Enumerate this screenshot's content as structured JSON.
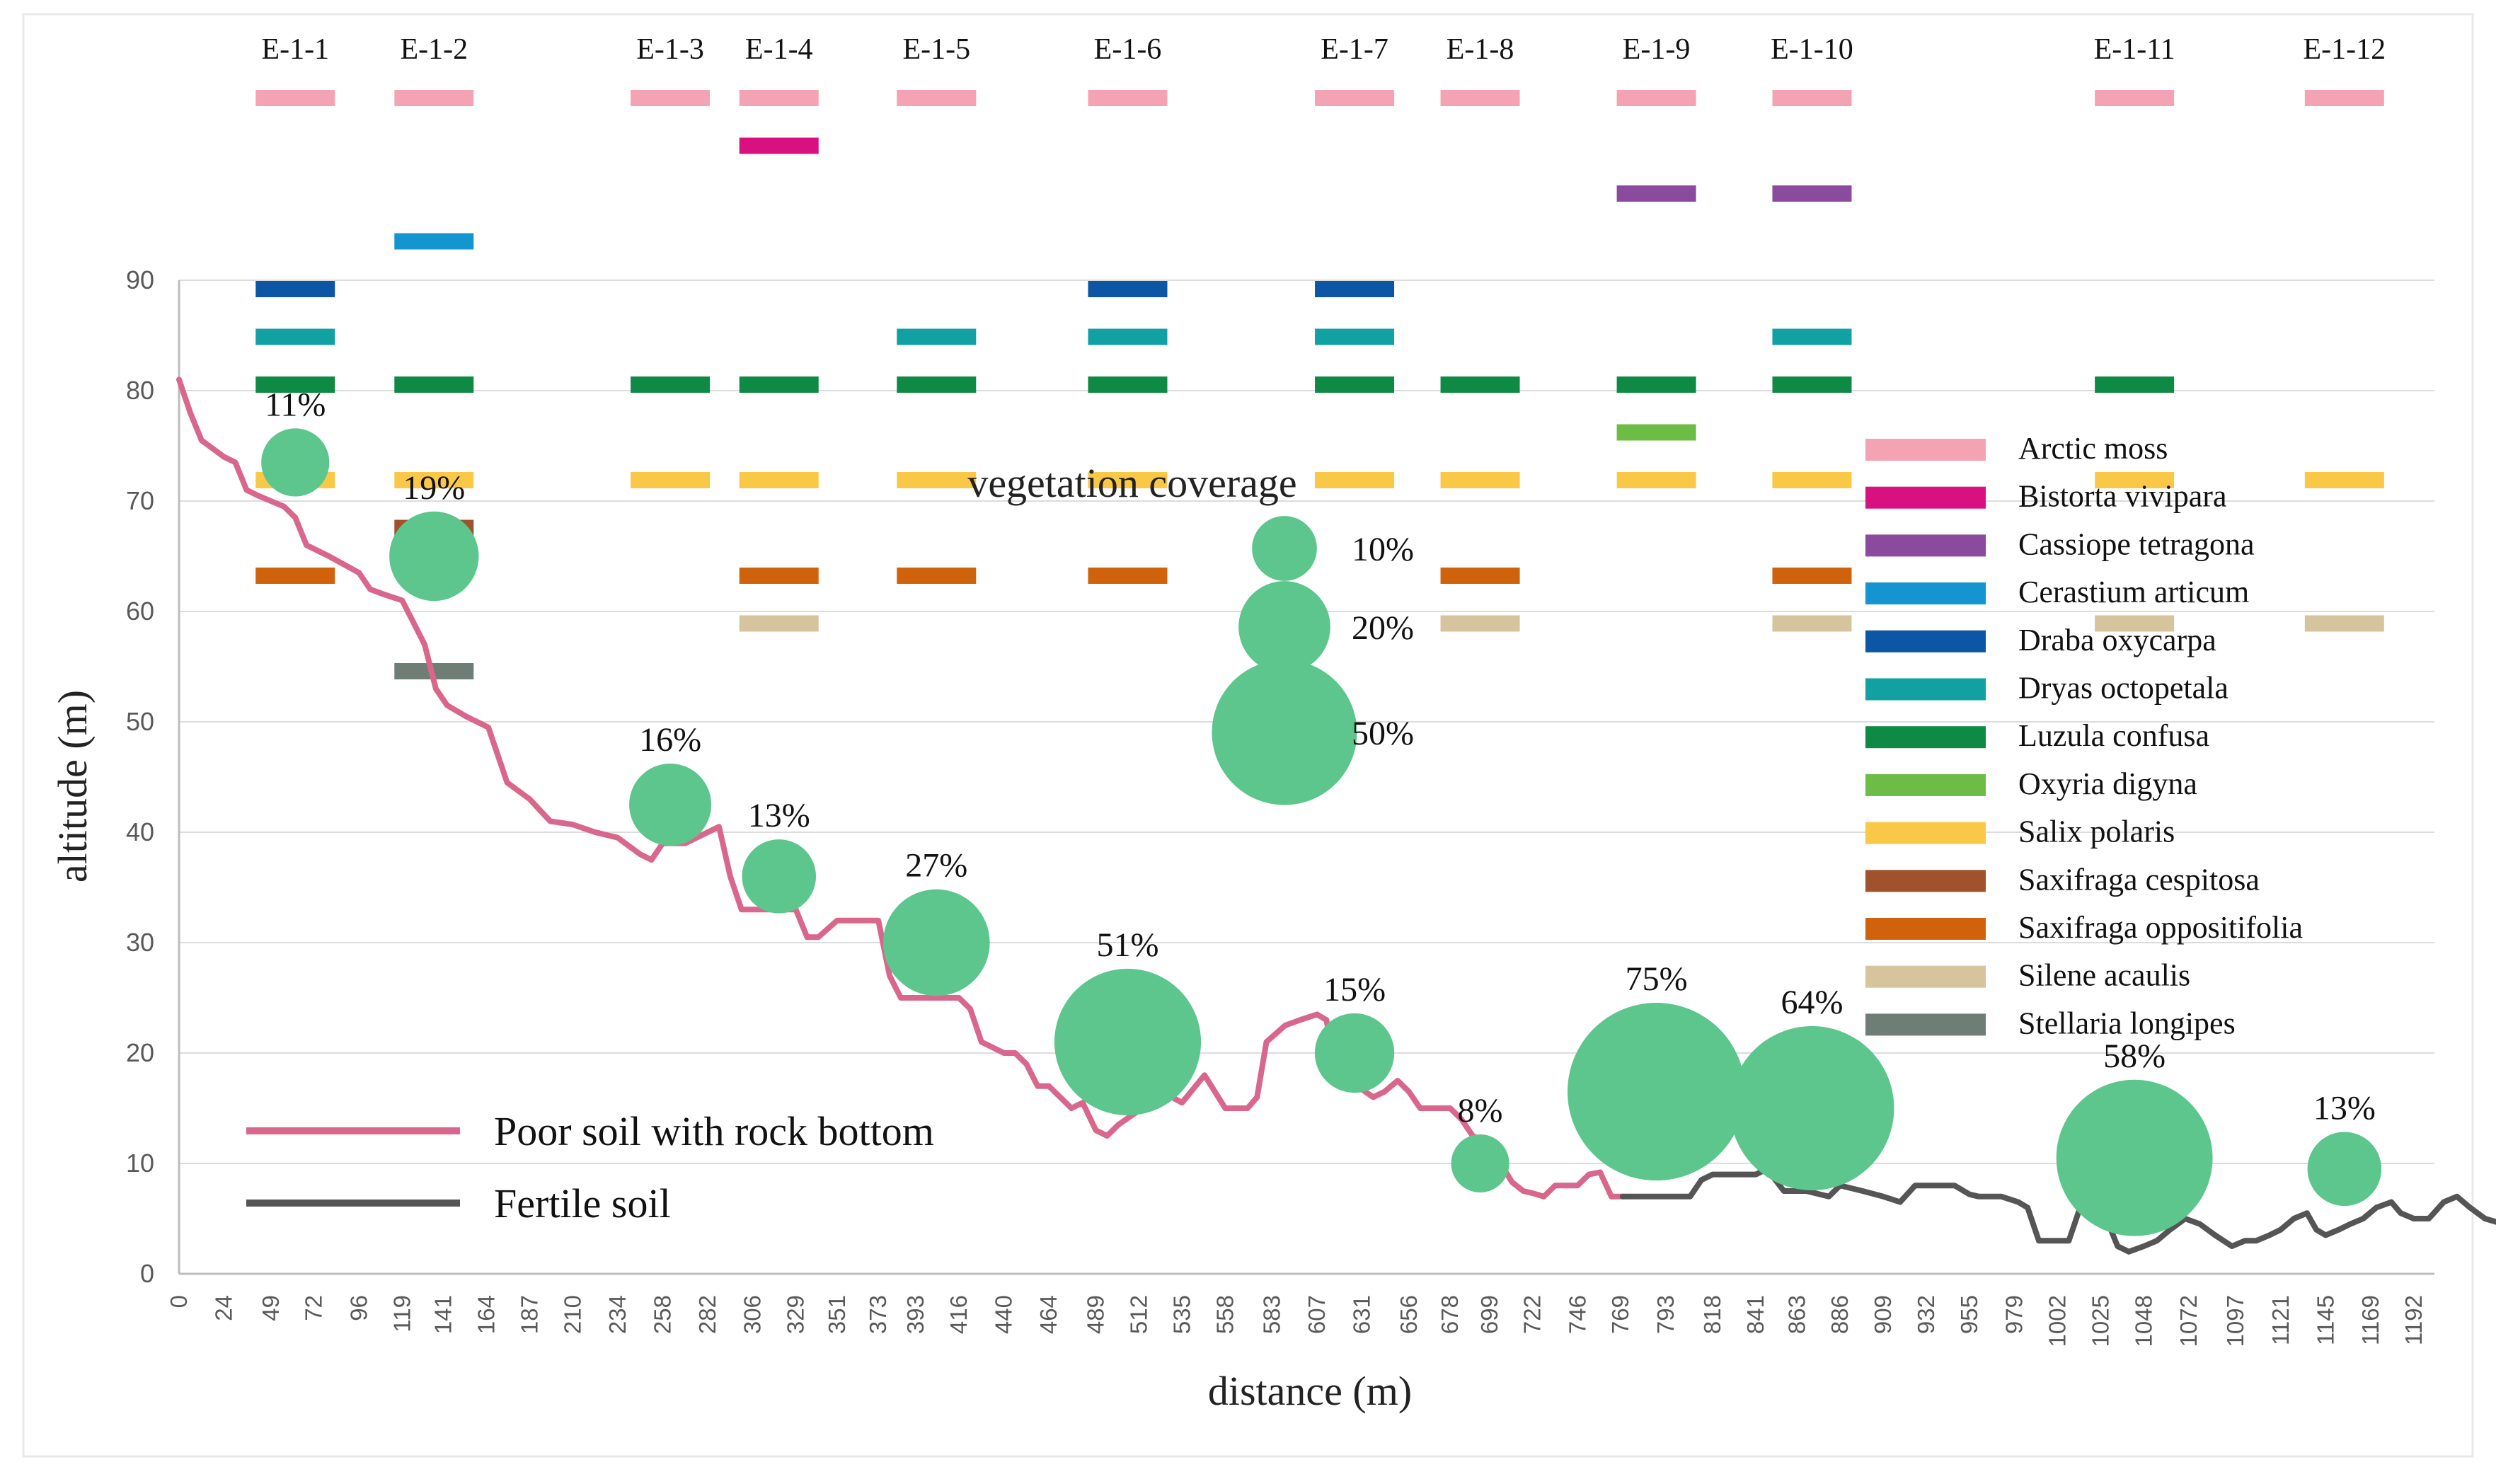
{
  "chart_data": {
    "type": "line",
    "title": "",
    "xlabel": "distance (m)",
    "ylabel": "altitude (m)",
    "xlim": [
      0,
      1203
    ],
    "ylim": [
      0,
      90
    ],
    "x_ticks": [
      0,
      24,
      49,
      72,
      96,
      119,
      141,
      164,
      187,
      210,
      234,
      258,
      282,
      306,
      329,
      351,
      373,
      393,
      416,
      440,
      464,
      489,
      512,
      535,
      558,
      583,
      607,
      631,
      656,
      678,
      699,
      722,
      746,
      769,
      793,
      818,
      841,
      863,
      886,
      909,
      932,
      955,
      979,
      1002,
      1025,
      1048,
      1072,
      1097,
      1121,
      1145,
      1169,
      1192
    ],
    "y_ticks": [
      0,
      10,
      20,
      30,
      40,
      50,
      60,
      70,
      80,
      90
    ],
    "grid": "horizontal",
    "series": [
      {
        "name": "Poor soil with rock bottom",
        "color": "#d9678c",
        "points": [
          [
            0,
            81
          ],
          [
            6,
            78
          ],
          [
            12,
            75.5
          ],
          [
            24,
            74
          ],
          [
            30,
            73.5
          ],
          [
            36,
            71
          ],
          [
            42,
            70.5
          ],
          [
            49,
            70
          ],
          [
            56,
            69.5
          ],
          [
            62,
            68.5
          ],
          [
            68,
            66
          ],
          [
            80,
            65
          ],
          [
            96,
            63.5
          ],
          [
            102,
            62
          ],
          [
            110,
            61.5
          ],
          [
            119,
            61
          ],
          [
            125,
            59
          ],
          [
            131,
            57
          ],
          [
            137,
            53
          ],
          [
            143,
            51.5
          ],
          [
            153,
            50.5
          ],
          [
            165,
            49.5
          ],
          [
            175,
            44.5
          ],
          [
            187,
            43
          ],
          [
            198,
            41
          ],
          [
            210,
            40.7
          ],
          [
            222,
            40
          ],
          [
            234,
            39.5
          ],
          [
            246,
            38
          ],
          [
            252,
            37.5
          ],
          [
            258,
            39
          ],
          [
            270,
            39
          ],
          [
            282,
            40
          ],
          [
            288,
            40.5
          ],
          [
            294,
            36
          ],
          [
            300,
            33
          ],
          [
            306,
            33
          ],
          [
            329,
            33
          ],
          [
            335,
            30.5
          ],
          [
            341,
            30.5
          ],
          [
            351,
            32
          ],
          [
            373,
            32
          ],
          [
            379,
            27
          ],
          [
            385,
            25
          ],
          [
            416,
            25
          ],
          [
            422,
            24
          ],
          [
            428,
            21
          ],
          [
            440,
            20
          ],
          [
            446,
            20
          ],
          [
            452,
            19
          ],
          [
            458,
            17
          ],
          [
            464,
            17
          ],
          [
            470,
            16
          ],
          [
            476,
            15
          ],
          [
            482,
            15.5
          ],
          [
            489,
            13
          ],
          [
            495,
            12.5
          ],
          [
            501,
            13.5
          ],
          [
            512,
            14.8
          ],
          [
            524,
            16.5
          ],
          [
            535,
            15.5
          ],
          [
            547,
            18
          ],
          [
            558,
            15
          ],
          [
            570,
            15
          ],
          [
            575,
            16
          ],
          [
            580,
            21
          ],
          [
            590,
            22.5
          ],
          [
            598,
            23
          ],
          [
            607,
            23.5
          ],
          [
            612,
            23
          ],
          [
            618,
            17.5
          ],
          [
            624,
            16.8
          ],
          [
            631,
            16.7
          ],
          [
            637,
            16
          ],
          [
            643,
            16.5
          ],
          [
            650,
            17.5
          ],
          [
            656,
            16.5
          ],
          [
            662,
            15
          ],
          [
            678,
            15
          ],
          [
            684,
            14
          ],
          [
            690,
            12.5
          ],
          [
            699,
            11.8
          ],
          [
            705,
            10
          ],
          [
            711,
            8.3
          ],
          [
            717,
            7.5
          ],
          [
            722,
            7.3
          ],
          [
            728,
            7
          ],
          [
            734,
            8
          ],
          [
            746,
            8
          ],
          [
            752,
            9
          ],
          [
            758,
            9.2
          ],
          [
            764,
            7
          ],
          [
            770,
            7
          ]
        ]
      },
      {
        "name": "Fertile soil",
        "color": "#555555",
        "points": [
          [
            770,
            7
          ],
          [
            785,
            7
          ],
          [
            797,
            7
          ],
          [
            806,
            7
          ],
          [
            812,
            8.5
          ],
          [
            818,
            9
          ],
          [
            841,
            9
          ],
          [
            847,
            9.5
          ],
          [
            856,
            7.5
          ],
          [
            862,
            7.5
          ],
          [
            868,
            7.5
          ],
          [
            880,
            7
          ],
          [
            886,
            8
          ],
          [
            898,
            7.5
          ],
          [
            909,
            7
          ],
          [
            918,
            6.5
          ],
          [
            926,
            8
          ],
          [
            932,
            8
          ],
          [
            947,
            8
          ],
          [
            955,
            7.2
          ],
          [
            960,
            7
          ],
          [
            972,
            7
          ],
          [
            981,
            6.5
          ],
          [
            986,
            6
          ],
          [
            992,
            3
          ],
          [
            1002,
            3
          ],
          [
            1008,
            3
          ],
          [
            1014,
            6
          ],
          [
            1020,
            5.5
          ],
          [
            1028,
            5
          ],
          [
            1034,
            2.5
          ],
          [
            1040,
            2
          ],
          [
            1048,
            2.5
          ],
          [
            1055,
            3
          ],
          [
            1062,
            4
          ],
          [
            1070,
            5
          ],
          [
            1078,
            4.5
          ],
          [
            1086,
            3.5
          ],
          [
            1095,
            2.5
          ],
          [
            1102,
            3
          ],
          [
            1108,
            3
          ],
          [
            1115,
            3.5
          ],
          [
            1121,
            4
          ],
          [
            1128,
            5
          ],
          [
            1135,
            5.5
          ],
          [
            1140,
            4
          ],
          [
            1145,
            3.5
          ],
          [
            1152,
            4
          ],
          [
            1158,
            4.5
          ],
          [
            1165,
            5
          ],
          [
            1172,
            6
          ],
          [
            1180,
            6.5
          ],
          [
            1185,
            5.5
          ],
          [
            1192,
            5
          ],
          [
            1200,
            5
          ],
          [
            1208,
            6.5
          ],
          [
            1215,
            7
          ],
          [
            1222,
            6
          ],
          [
            1230,
            5
          ],
          [
            1240,
            4.5
          ]
        ]
      }
    ],
    "sites": [
      {
        "label": "E-1-1",
        "x": 62,
        "y": 73.5,
        "coverage": 11,
        "coverage_label": "11%",
        "species": [
          "Arctic moss",
          "Draba oxycarpa",
          "Dryas octopetala",
          "Luzula confusa",
          "Salix polaris",
          "Saxifraga oppositifolia"
        ]
      },
      {
        "label": "E-1-2",
        "x": 136,
        "y": 65,
        "coverage": 19,
        "coverage_label": "19%",
        "species": [
          "Arctic moss",
          "Cerastium articum",
          "Luzula confusa",
          "Salix polaris",
          "Saxifraga cespitosa",
          "Stellaria longipes"
        ]
      },
      {
        "label": "E-1-3",
        "x": 262,
        "y": 42.5,
        "coverage": 16,
        "coverage_label": "16%",
        "species": [
          "Arctic moss",
          "Luzula confusa",
          "Salix polaris"
        ]
      },
      {
        "label": "E-1-4",
        "x": 320,
        "y": 36,
        "coverage": 13,
        "coverage_label": "13%",
        "species": [
          "Arctic moss",
          "Bistorta vivipara",
          "Luzula confusa",
          "Salix polaris",
          "Saxifraga oppositifolia",
          "Silene acaulis"
        ]
      },
      {
        "label": "E-1-5",
        "x": 404,
        "y": 30,
        "coverage": 27,
        "coverage_label": "27%",
        "species": [
          "Arctic moss",
          "Dryas octopetala",
          "Luzula confusa",
          "Salix polaris",
          "Saxifraga oppositifolia"
        ]
      },
      {
        "label": "E-1-6",
        "x": 506,
        "y": 21,
        "coverage": 51,
        "coverage_label": "51%",
        "species": [
          "Arctic moss",
          "Draba oxycarpa",
          "Dryas octopetala",
          "Luzula confusa",
          "Salix polaris",
          "Saxifraga oppositifolia"
        ]
      },
      {
        "label": "E-1-7",
        "x": 627,
        "y": 20,
        "coverage": 15,
        "coverage_label": "15%",
        "species": [
          "Arctic moss",
          "Draba oxycarpa",
          "Dryas octopetala",
          "Luzula confusa",
          "Salix polaris"
        ]
      },
      {
        "label": "E-1-8",
        "x": 694,
        "y": 10,
        "coverage": 8,
        "coverage_label": "8%",
        "species": [
          "Arctic moss",
          "Luzula confusa",
          "Salix polaris",
          "Saxifraga oppositifolia",
          "Silene acaulis"
        ]
      },
      {
        "label": "E-1-9",
        "x": 788,
        "y": 16.5,
        "coverage": 75,
        "coverage_label": "75%",
        "species": [
          "Arctic moss",
          "Cassiope tetragona",
          "Luzula confusa",
          "Oxyria digyna",
          "Salix polaris"
        ]
      },
      {
        "label": "E-1-10",
        "x": 871,
        "y": 15,
        "coverage": 64,
        "coverage_label": "64%",
        "species": [
          "Arctic moss",
          "Cassiope tetragona",
          "Dryas octopetala",
          "Luzula confusa",
          "Salix polaris",
          "Saxifraga oppositifolia",
          "Silene acaulis"
        ]
      },
      {
        "label": "E-1-11",
        "x": 1043,
        "y": 10.5,
        "coverage": 58,
        "coverage_label": "58%",
        "species": [
          "Arctic moss",
          "Luzula confusa",
          "Salix polaris",
          "Silene acaulis"
        ]
      },
      {
        "label": "E-1-12",
        "x": 1155,
        "y": 9.5,
        "coverage": 13,
        "coverage_label": "13%",
        "species": [
          "Arctic moss",
          "Salix polaris",
          "Silene acaulis"
        ]
      }
    ],
    "species_legend": [
      {
        "name": "Arctic moss",
        "color": "#f4a3b4"
      },
      {
        "name": "Bistorta vivipara",
        "color": "#d9107f"
      },
      {
        "name": "Cassiope tetragona",
        "color": "#8a4a9e"
      },
      {
        "name": "Cerastium articum",
        "color": "#1594d2"
      },
      {
        "name": "Draba oxycarpa",
        "color": "#0d56a6"
      },
      {
        "name": "Dryas octopetala",
        "color": "#12a1a3"
      },
      {
        "name": "Luzula confusa",
        "color": "#0f8a45"
      },
      {
        "name": "Oxyria digyna",
        "color": "#6cbd45"
      },
      {
        "name": "Salix polaris",
        "color": "#fac847"
      },
      {
        "name": "Saxifraga cespitosa",
        "color": "#a0522d"
      },
      {
        "name": "Saxifraga oppositifolia",
        "color": "#d0620c"
      },
      {
        "name": "Silene acaulis",
        "color": "#d6c49c"
      },
      {
        "name": "Stellaria longipes",
        "color": "#6e7e76"
      }
    ],
    "coverage_legend": {
      "title": "vegetation coverage",
      "items": [
        {
          "value": 10,
          "label": "10%"
        },
        {
          "value": 20,
          "label": "20%"
        },
        {
          "value": 50,
          "label": "50%"
        }
      ]
    },
    "bubble_color": "#5cc68d"
  }
}
